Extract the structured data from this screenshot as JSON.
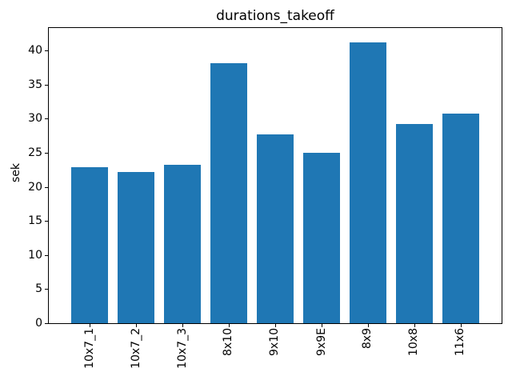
{
  "chart_data": {
    "type": "bar",
    "title": "durations_takeoff",
    "xlabel": "",
    "ylabel": "sek",
    "categories": [
      "10x7_1",
      "10x7_2",
      "10x7_3",
      "8x10",
      "9x10",
      "9x9E",
      "8x9",
      "10x8",
      "11x6"
    ],
    "values": [
      22.9,
      22.2,
      23.2,
      38.1,
      27.7,
      25.0,
      41.2,
      29.2,
      30.8
    ],
    "yticks": [
      0,
      5,
      10,
      15,
      20,
      25,
      30,
      35,
      40
    ],
    "ylim": [
      0,
      43.3
    ],
    "x_tick_rotation_deg": 90,
    "grid": false,
    "legend": false,
    "bar_color": "#1f77b4",
    "text_color": "#000000",
    "background_color": "#ffffff"
  }
}
